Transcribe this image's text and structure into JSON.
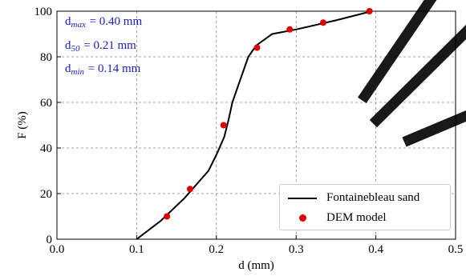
{
  "colors": {
    "annotation": "#1a1adb",
    "model_marker": "#e00000",
    "line": "#000000",
    "grid": "#888888",
    "watermark": "#000000"
  },
  "annotations": [
    {
      "main": "d",
      "sub": "max",
      "rest": " = 0.40 mm"
    },
    {
      "main": "d",
      "sub": "50",
      "rest": " = 0.21 mm"
    },
    {
      "main": "d",
      "sub": "min",
      "rest": " = 0.14 mm"
    }
  ],
  "legend": {
    "placement": "lower-right",
    "entries": [
      "Fontainebleau sand",
      "DEM model"
    ]
  },
  "chart_data": {
    "type": "line",
    "xlabel": "d (mm)",
    "ylabel": "F (%)",
    "xlim": [
      0.0,
      0.5
    ],
    "ylim": [
      0,
      100
    ],
    "xticks": [
      "0.0",
      "0.1",
      "0.2",
      "0.3",
      "0.4",
      "0.5"
    ],
    "xtick_values": [
      0.0,
      0.1,
      0.2,
      0.3,
      0.4,
      0.5
    ],
    "yticks": [
      "0",
      "20",
      "40",
      "60",
      "80",
      "100"
    ],
    "ytick_values": [
      0,
      20,
      40,
      60,
      80,
      100
    ],
    "grid": true,
    "series": [
      {
        "name": "Fontainebleau sand",
        "style": "line",
        "x": [
          0.1,
          0.13,
          0.16,
          0.19,
          0.2,
          0.21,
          0.215,
          0.22,
          0.23,
          0.24,
          0.25,
          0.27,
          0.3,
          0.35,
          0.395
        ],
        "y": [
          0,
          8,
          18,
          30,
          37,
          45,
          52,
          60,
          70,
          80,
          85,
          90,
          92,
          96,
          100
        ]
      },
      {
        "name": "DEM model",
        "style": "scatter",
        "x": [
          0.138,
          0.167,
          0.209,
          0.251,
          0.292,
          0.334,
          0.392
        ],
        "y": [
          10,
          22,
          50,
          84,
          92,
          95,
          100
        ]
      }
    ]
  }
}
